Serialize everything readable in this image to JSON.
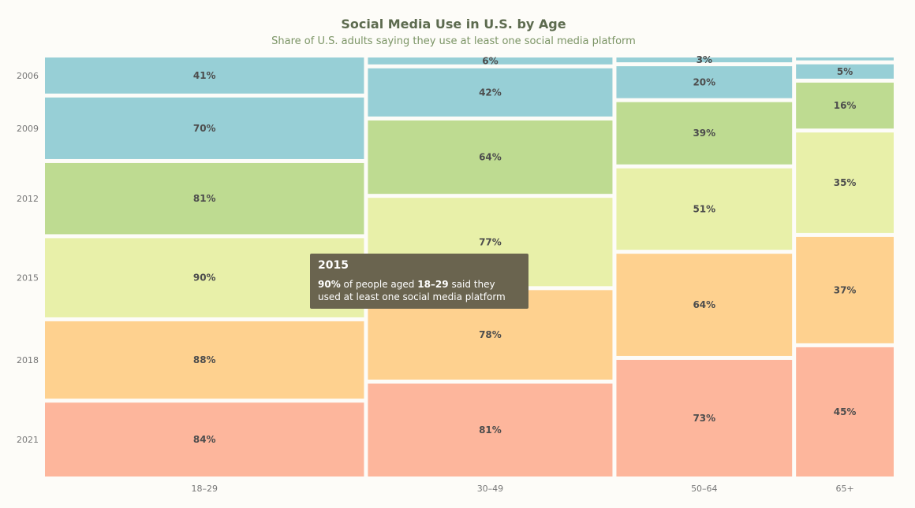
{
  "chart_data": {
    "type": "mosaic",
    "title": "Social Media Use in U.S. by Age",
    "subtitle": "Share of U.S. adults saying they use at least one social media platform",
    "groups": [
      "18–29",
      "30–49",
      "50–64",
      "65+"
    ],
    "years": [
      "2006",
      "2009",
      "2012",
      "2015",
      "2018",
      "2021"
    ],
    "values": {
      "18–29": [
        41,
        70,
        81,
        90,
        88,
        84
      ],
      "30–49": [
        6,
        42,
        64,
        77,
        78,
        81
      ],
      "50–64": [
        3,
        20,
        39,
        51,
        64,
        73
      ],
      "65+": [
        1,
        5,
        16,
        35,
        37,
        45
      ]
    },
    "labels": {
      "18–29": [
        "41%",
        "70%",
        "81%",
        "90%",
        "88%",
        "84%"
      ],
      "30–49": [
        "6%",
        "42%",
        "64%",
        "77%",
        "78%",
        "81%"
      ],
      "50–64": [
        "3%",
        "20%",
        "39%",
        "51%",
        "64%",
        "73%"
      ],
      "65+": [
        "",
        "5%",
        "16%",
        "35%",
        "37%",
        "45%"
      ]
    },
    "colors": [
      "#97cfd6",
      "#97cfd6",
      "#bedb91",
      "#e8f0a9",
      "#fed18f",
      "#fdb69c"
    ]
  },
  "tooltip": {
    "title": "2015",
    "value": "90%",
    "text_1": " of people aged ",
    "group": "18–29",
    "text_2": " said they used at least one social media platform"
  }
}
